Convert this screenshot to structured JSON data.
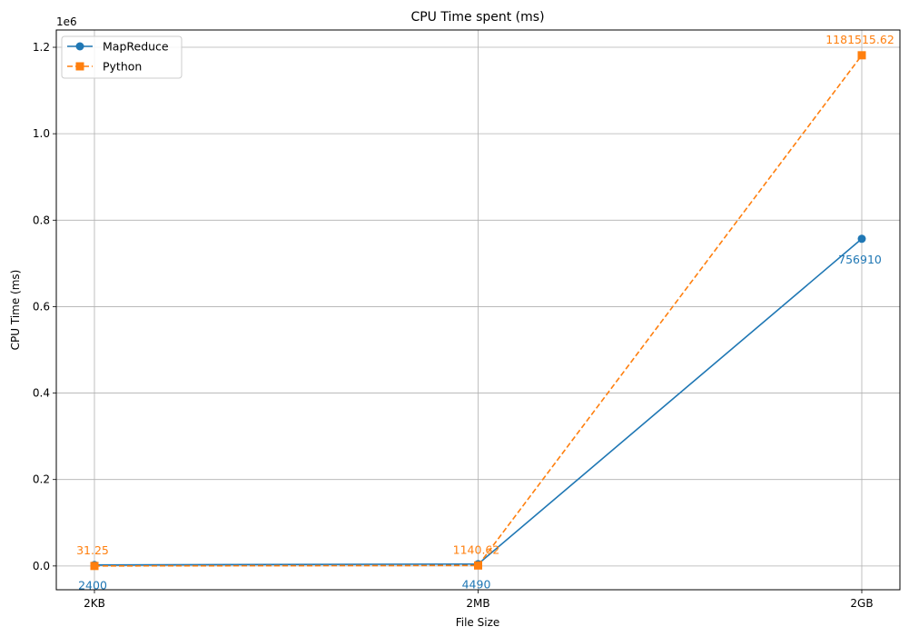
{
  "chart_data": {
    "type": "line",
    "title": "CPU Time spent (ms)",
    "xlabel": "File Size",
    "ylabel": "CPU Time (ms)",
    "y_offset_text": "1e6",
    "y_scale": 1000000,
    "categories": [
      "2KB",
      "2MB",
      "2GB"
    ],
    "ylim": [
      -55000,
      1240000
    ],
    "yticks": [
      0,
      200000,
      400000,
      600000,
      800000,
      1000000,
      1200000
    ],
    "ytick_labels": [
      "0.0",
      "0.2",
      "0.4",
      "0.6",
      "0.8",
      "1.0",
      "1.2"
    ],
    "grid": true,
    "legend_position": "top-left",
    "series": [
      {
        "name": "MapReduce",
        "values": [
          2400,
          4490,
          756910
        ],
        "value_labels": [
          "2400",
          "4490",
          "756910"
        ],
        "color": "#1f77b4",
        "marker": "circle",
        "linestyle": "solid",
        "label_position": "below"
      },
      {
        "name": "Python",
        "values": [
          31.25,
          1140.62,
          1181515.62
        ],
        "value_labels": [
          "31.25",
          "1140.62",
          "1181515.62"
        ],
        "color": "#ff7f0e",
        "marker": "square",
        "linestyle": "dashed",
        "label_position": "above"
      }
    ]
  }
}
